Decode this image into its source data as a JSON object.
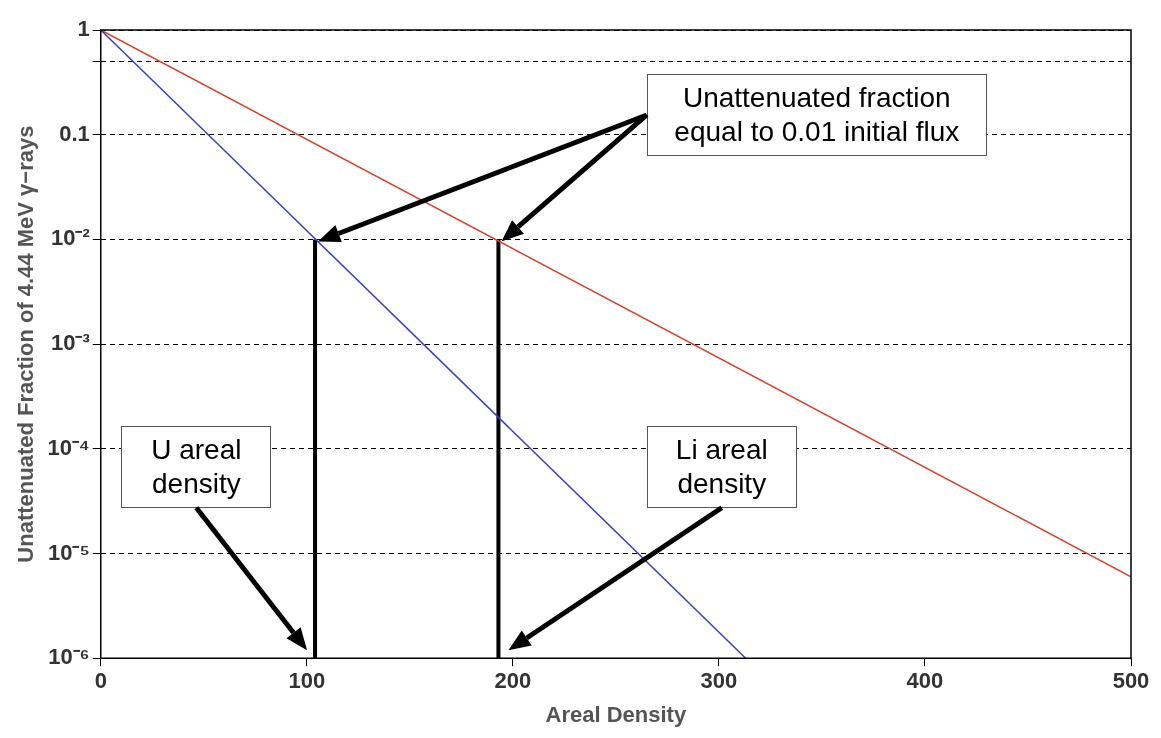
{
  "chart_data": {
    "type": "line",
    "xlabel": "Areal Density",
    "ylabel": "Unattenuated Fraction of 4.44 MeV γ−rays",
    "xlim": [
      0,
      500
    ],
    "xticks": [
      0,
      100,
      200,
      300,
      400,
      500
    ],
    "ylim": [
      1e-06,
      1
    ],
    "log": "y",
    "yticks": [
      {
        "value": 1e-06,
        "label": "10⁻⁶"
      },
      {
        "value": 1e-05,
        "label": "10⁻⁵"
      },
      {
        "value": 0.0001,
        "label": "10⁻⁴"
      },
      {
        "value": 0.001,
        "label": "10⁻³"
      },
      {
        "value": 0.01,
        "label": "10⁻²"
      },
      0.1,
      {
        "value": 0.5,
        "label": null
      },
      1
    ],
    "grid": "y",
    "legend": false,
    "marker": "none",
    "line_style": "solid",
    "series": [
      {
        "color": "#3a3fc0",
        "x": [
          0,
          313
        ],
        "values": [
          1,
          1e-06
        ]
      },
      {
        "color": "#d0452f",
        "x": [
          0,
          500
        ],
        "values": [
          1,
          6e-06
        ]
      },
      {
        "color": "#000000",
        "x": [
          104,
          104
        ],
        "values": [
          1e-06,
          0.01
        ]
      },
      {
        "color": "#000000",
        "x": [
          193,
          193
        ],
        "values": [
          1e-06,
          0.01
        ]
      }
    ],
    "annotations": [
      "Unattenuated fraction equal to 0.01 initial flux",
      "U areal density",
      "Li areal density"
    ]
  }
}
